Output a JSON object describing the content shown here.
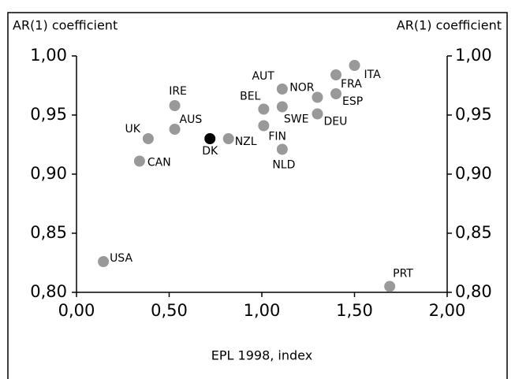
{
  "chart_data": {
    "type": "scatter",
    "y_title": "AR(1) coefficient",
    "y2_title": "AR(1) coefficient",
    "x_title": "EPL 1998, index",
    "labels": [
      "USA",
      "UK",
      "CAN",
      "IRE",
      "AUS",
      "DK",
      "NZL",
      "BEL",
      "FIN",
      "AUT",
      "SWE",
      "NLD",
      "NOR",
      "DEU",
      "FRA",
      "ESP",
      "ITA",
      "PRT"
    ],
    "x": [
      0.145,
      0.387,
      0.34,
      0.53,
      0.53,
      0.72,
      0.82,
      1.01,
      1.01,
      1.11,
      1.11,
      1.11,
      1.3,
      1.3,
      1.4,
      1.4,
      1.5,
      1.69
    ],
    "values": [
      0.826,
      0.93,
      0.911,
      0.958,
      0.938,
      0.93,
      0.93,
      0.955,
      0.941,
      0.972,
      0.957,
      0.921,
      0.965,
      0.951,
      0.984,
      0.968,
      0.992,
      0.805
    ],
    "colors": [
      "#999999",
      "#999999",
      "#999999",
      "#999999",
      "#999999",
      "#000000",
      "#999999",
      "#999999",
      "#999999",
      "#999999",
      "#999999",
      "#999999",
      "#999999",
      "#999999",
      "#999999",
      "#999999",
      "#999999",
      "#999999"
    ],
    "xlim": [
      0,
      2
    ],
    "ylim": [
      0.8,
      1.0
    ],
    "xticks": [
      {
        "value": 0,
        "label": "0,00"
      },
      {
        "value": 0.5,
        "label": "0,50"
      },
      {
        "value": 1,
        "label": "1,00"
      },
      {
        "value": 1.5,
        "label": "1,50"
      },
      {
        "value": 2,
        "label": "2,00"
      }
    ],
    "yticks": [
      {
        "value": 0.8,
        "label": "0,80"
      },
      {
        "value": 0.85,
        "label": "0,85"
      },
      {
        "value": 0.9,
        "label": "0,90"
      },
      {
        "value": 0.95,
        "label": "0,95"
      },
      {
        "value": 1.0,
        "label": "1,00"
      }
    ],
    "y2ticks": [
      {
        "value": 0.8,
        "label": "0,80"
      },
      {
        "value": 0.85,
        "label": "0,85"
      },
      {
        "value": 0.9,
        "label": "0,90"
      },
      {
        "value": 0.95,
        "label": "0,95"
      },
      {
        "value": 1.0,
        "label": "1,00"
      }
    ]
  }
}
